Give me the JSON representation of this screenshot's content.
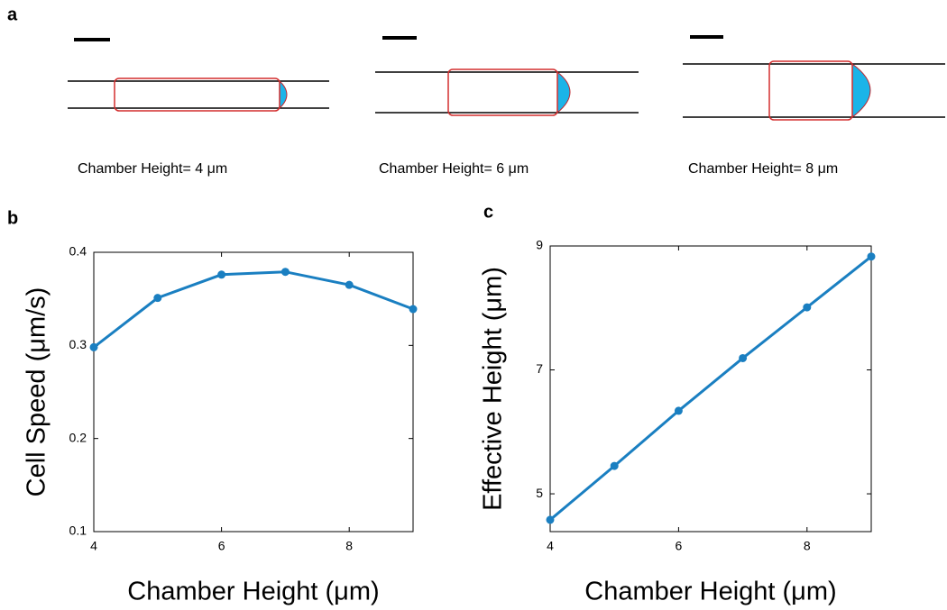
{
  "panel_a": {
    "label": "a",
    "captions": [
      "Chamber Height= 4 μm",
      "Chamber Height= 6 μm",
      "Chamber Height= 8 μm"
    ]
  },
  "chart_data": [
    {
      "type": "line",
      "label": "b",
      "xlabel": "Chamber Height (μm)",
      "ylabel": "Cell Speed (μm/s)",
      "color": "#1a7fc1",
      "x": [
        4,
        5,
        6,
        7,
        8,
        9
      ],
      "values": [
        0.298,
        0.351,
        0.376,
        0.379,
        0.365,
        0.339
      ],
      "xlim": [
        4,
        9
      ],
      "xticks": [
        4,
        6,
        8
      ],
      "ylim": [
        0.1,
        0.4
      ],
      "yticks": [
        0.1,
        0.2,
        0.3,
        0.4
      ]
    },
    {
      "type": "line",
      "label": "c",
      "xlabel": "Chamber Height (μm)",
      "ylabel": "Effective Height (μm)",
      "color": "#1a7fc1",
      "x": [
        4,
        5,
        6,
        7,
        8,
        9
      ],
      "values": [
        4.58,
        5.45,
        6.34,
        7.19,
        8.01,
        8.83
      ],
      "xlim": [
        4,
        9
      ],
      "xticks": [
        4,
        6,
        8
      ],
      "ylim": [
        4.39,
        9
      ],
      "yticks": [
        5,
        7,
        9
      ]
    }
  ]
}
